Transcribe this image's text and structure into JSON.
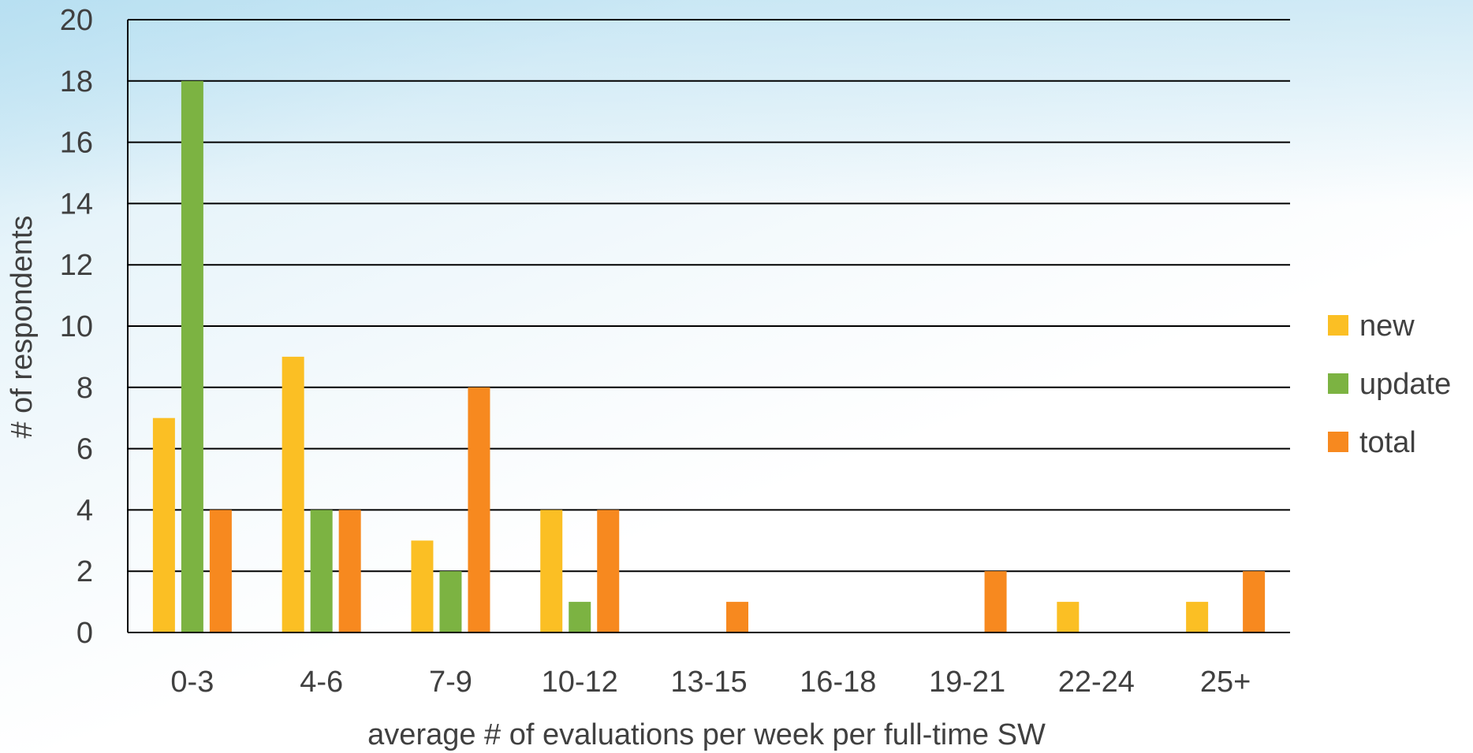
{
  "chart_data": {
    "type": "bar",
    "categories": [
      "0-3",
      "4-6",
      "7-9",
      "10-12",
      "13-15",
      "16-18",
      "19-21",
      "22-24",
      "25+"
    ],
    "series": [
      {
        "name": "new",
        "color": "#FBBF24",
        "values": [
          7,
          9,
          3,
          4,
          0,
          0,
          0,
          1,
          1
        ]
      },
      {
        "name": "update",
        "color": "#7CB342",
        "values": [
          18,
          4,
          2,
          1,
          0,
          0,
          0,
          0,
          0
        ]
      },
      {
        "name": "total",
        "color": "#F7891F",
        "values": [
          4,
          4,
          8,
          4,
          1,
          0,
          2,
          0,
          2
        ]
      }
    ],
    "xlabel": "average # of evaluations per week per full-time SW",
    "ylabel": "# of respondents",
    "ylim": [
      0,
      20
    ],
    "yticks": [
      "0",
      "2",
      "4",
      "6",
      "8",
      "10",
      "12",
      "14",
      "16",
      "18",
      "20"
    ],
    "grid": true,
    "legend_position": "right"
  }
}
